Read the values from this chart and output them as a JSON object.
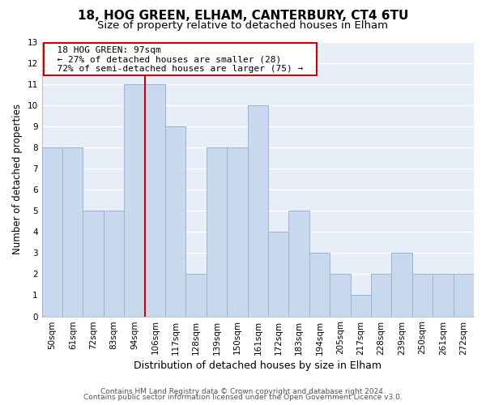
{
  "title": "18, HOG GREEN, ELHAM, CANTERBURY, CT4 6TU",
  "subtitle": "Size of property relative to detached houses in Elham",
  "xlabel": "Distribution of detached houses by size in Elham",
  "ylabel": "Number of detached properties",
  "categories": [
    "50sqm",
    "61sqm",
    "72sqm",
    "83sqm",
    "94sqm",
    "106sqm",
    "117sqm",
    "128sqm",
    "139sqm",
    "150sqm",
    "161sqm",
    "172sqm",
    "183sqm",
    "194sqm",
    "205sqm",
    "217sqm",
    "228sqm",
    "239sqm",
    "250sqm",
    "261sqm",
    "272sqm"
  ],
  "values": [
    8,
    8,
    5,
    5,
    11,
    11,
    9,
    2,
    8,
    8,
    10,
    4,
    5,
    3,
    2,
    1,
    2,
    3,
    2,
    2,
    2
  ],
  "bar_color": "#c8d8ef",
  "bar_edge_color": "#9ab4d4",
  "reference_line_color": "#cc0000",
  "ylim": [
    0,
    13
  ],
  "yticks": [
    0,
    1,
    2,
    3,
    4,
    5,
    6,
    7,
    8,
    9,
    10,
    11,
    12,
    13
  ],
  "annotation_title": "18 HOG GREEN: 97sqm",
  "annotation_line1": "← 27% of detached houses are smaller (28)",
  "annotation_line2": "72% of semi-detached houses are larger (75) →",
  "annotation_box_color": "white",
  "annotation_box_edge": "#cc0000",
  "footer1": "Contains HM Land Registry data © Crown copyright and database right 2024.",
  "footer2": "Contains public sector information licensed under the Open Government Licence v3.0.",
  "background_color": "#ffffff",
  "plot_background": "#e8eef8",
  "grid_color": "#ffffff",
  "title_fontsize": 11,
  "subtitle_fontsize": 9.5,
  "xlabel_fontsize": 9,
  "ylabel_fontsize": 8.5,
  "tick_fontsize": 7.5,
  "annotation_fontsize": 8,
  "footer_fontsize": 6.5
}
